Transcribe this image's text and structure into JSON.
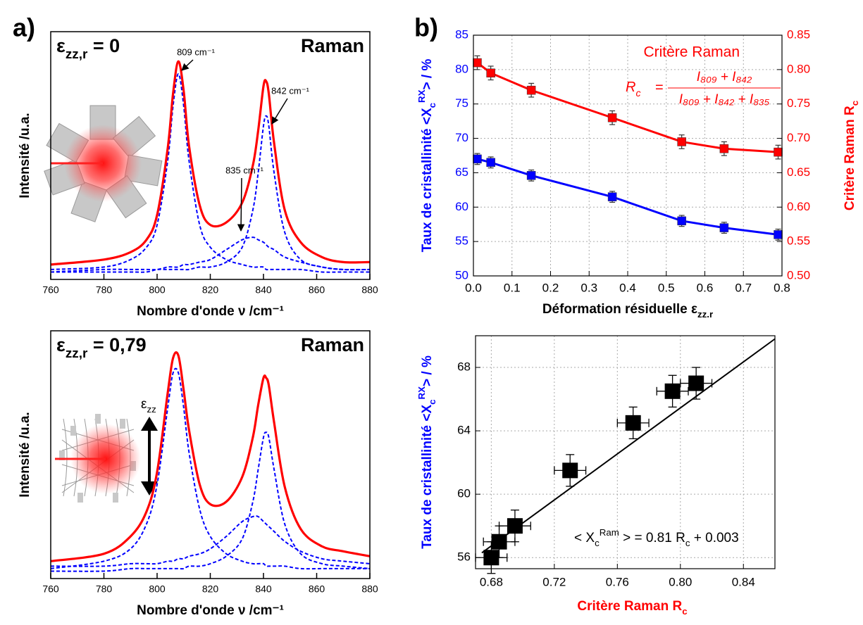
{
  "chart_data": [
    {
      "type": "spectrum",
      "panel_label": "a)",
      "corner_label": {
        "symbol": "ε",
        "sub": "zz,r",
        "end": " = 0"
      },
      "method": "Raman",
      "x_label": "Nombre d'onde ν /cm⁻¹",
      "y_label": "Intensité /u.a.",
      "x": [
        760,
        780,
        790,
        796,
        800,
        804,
        806,
        808,
        810,
        812,
        816,
        820,
        826,
        832,
        836,
        838,
        840,
        841,
        842,
        844,
        848,
        854,
        862,
        870,
        880
      ],
      "xlim": [
        760,
        880
      ],
      "xticks": [
        760,
        780,
        800,
        820,
        840,
        860,
        880
      ],
      "ylim": [
        0,
        1
      ],
      "series": [
        {
          "color": "#ff0000",
          "line_style": "solid",
          "values": [
            0.06,
            0.08,
            0.11,
            0.16,
            0.26,
            0.53,
            0.75,
            0.88,
            0.76,
            0.54,
            0.3,
            0.22,
            0.23,
            0.31,
            0.46,
            0.6,
            0.78,
            0.8,
            0.75,
            0.55,
            0.28,
            0.15,
            0.09,
            0.07,
            0.07
          ]
        },
        {
          "color": "#0000ff",
          "line_style": "dashed",
          "values": [
            0.04,
            0.05,
            0.08,
            0.13,
            0.22,
            0.48,
            0.7,
            0.83,
            0.7,
            0.48,
            0.22,
            0.13,
            0.08,
            0.06,
            0.05,
            0.05,
            0.05,
            0.04,
            0.04,
            0.04,
            0.04,
            0.04,
            0.03,
            0.03,
            0.03
          ]
        },
        {
          "color": "#0000ff",
          "line_style": "dashed",
          "values": [
            0.03,
            0.03,
            0.03,
            0.03,
            0.04,
            0.04,
            0.04,
            0.04,
            0.04,
            0.04,
            0.05,
            0.05,
            0.07,
            0.13,
            0.28,
            0.43,
            0.62,
            0.66,
            0.62,
            0.43,
            0.19,
            0.08,
            0.05,
            0.04,
            0.04
          ]
        },
        {
          "color": "#0000ff",
          "line_style": "dashed",
          "values": [
            0.03,
            0.04,
            0.04,
            0.04,
            0.04,
            0.05,
            0.05,
            0.05,
            0.06,
            0.06,
            0.07,
            0.08,
            0.12,
            0.16,
            0.17,
            0.16,
            0.15,
            0.14,
            0.13,
            0.12,
            0.09,
            0.07,
            0.05,
            0.04,
            0.04
          ]
        }
      ],
      "annotations": [
        "809 cm⁻¹",
        "842 cm⁻¹",
        "835 cm⁻¹"
      ]
    },
    {
      "type": "spectrum",
      "corner_label": {
        "symbol": "ε",
        "sub": "zz,r",
        "end": " = 0,79"
      },
      "method": "Raman",
      "x_label": "Nombre d'onde ν /cm⁻¹",
      "y_label": "Intensité /u.a.",
      "strain_label": {
        "symbol": "ε",
        "sub": "zz"
      },
      "x": [
        760,
        780,
        790,
        796,
        800,
        804,
        806,
        808,
        810,
        812,
        816,
        820,
        826,
        832,
        836,
        838,
        840,
        841,
        842,
        844,
        848,
        854,
        862,
        870,
        880
      ],
      "xlim": [
        760,
        880
      ],
      "xticks": [
        760,
        780,
        800,
        820,
        840,
        860,
        880
      ],
      "ylim": [
        0,
        1
      ],
      "series": [
        {
          "color": "#ff0000",
          "line_style": "solid",
          "values": [
            0.07,
            0.1,
            0.17,
            0.27,
            0.43,
            0.75,
            0.89,
            0.9,
            0.76,
            0.6,
            0.38,
            0.3,
            0.31,
            0.41,
            0.57,
            0.7,
            0.81,
            0.81,
            0.78,
            0.63,
            0.37,
            0.2,
            0.13,
            0.11,
            0.09
          ]
        },
        {
          "color": "#0000ff",
          "line_style": "dashed",
          "values": [
            0.04,
            0.07,
            0.12,
            0.22,
            0.38,
            0.69,
            0.83,
            0.83,
            0.69,
            0.51,
            0.28,
            0.17,
            0.1,
            0.07,
            0.06,
            0.06,
            0.06,
            0.05,
            0.05,
            0.05,
            0.05,
            0.04,
            0.04,
            0.04,
            0.04
          ]
        },
        {
          "color": "#0000ff",
          "line_style": "dashed",
          "values": [
            0.03,
            0.03,
            0.04,
            0.04,
            0.04,
            0.04,
            0.04,
            0.04,
            0.04,
            0.05,
            0.05,
            0.06,
            0.09,
            0.16,
            0.31,
            0.44,
            0.57,
            0.59,
            0.57,
            0.44,
            0.22,
            0.1,
            0.06,
            0.05,
            0.04
          ]
        },
        {
          "color": "#0000ff",
          "line_style": "dashed",
          "values": [
            0.05,
            0.05,
            0.06,
            0.06,
            0.06,
            0.07,
            0.07,
            0.08,
            0.08,
            0.09,
            0.1,
            0.12,
            0.17,
            0.23,
            0.25,
            0.25,
            0.23,
            0.22,
            0.21,
            0.19,
            0.15,
            0.11,
            0.08,
            0.07,
            0.06
          ]
        }
      ]
    },
    {
      "type": "dual_line",
      "panel_label": "b)",
      "x_label": {
        "text": "Déformation résiduelle ε",
        "sub": "zz.r"
      },
      "y_label": {
        "text": "Taux de cristallinité <X",
        "sub": "c",
        "sup": "RX",
        "end": "> / %"
      },
      "y2_label": {
        "text": "Critère Raman R",
        "sub": "c"
      },
      "formula": {
        "lhs": "R",
        "lhs_sub": "c",
        "eq": "=",
        "numerator": "I₈₀₉ + I₈₄₂",
        "denominator": "I₈₀₉ + I₈₄₂ + I₈₃₅"
      },
      "x": [
        0.01,
        0.045,
        0.15,
        0.36,
        0.54,
        0.65,
        0.79
      ],
      "xlim": [
        0,
        0.8
      ],
      "xticks": [
        {
          "value": 0,
          "label": "0.0"
        },
        0.1,
        0.2,
        0.3,
        0.4,
        0.5,
        0.6,
        0.7,
        0.8
      ],
      "ylim": [
        50,
        85
      ],
      "yticks": [
        50,
        55,
        60,
        65,
        70,
        75,
        80,
        85
      ],
      "y2lim": [
        0.5,
        0.85
      ],
      "y2ticks": [
        {
          "value": 0.5,
          "label": "0.50"
        },
        0.55,
        {
          "value": 0.6,
          "label": "0.60"
        },
        0.65,
        {
          "value": 0.7,
          "label": "0.70"
        },
        0.75,
        {
          "value": 0.8,
          "label": "0.80"
        },
        0.85
      ],
      "grid": true,
      "series": [
        {
          "color": "#0000ff",
          "axis": "y",
          "values": [
            67,
            66.5,
            64.6,
            61.5,
            58,
            57,
            56
          ],
          "errors": [
            0.8,
            0.8,
            0.8,
            0.8,
            0.8,
            0.8,
            0.8
          ]
        },
        {
          "name": "Critère Raman",
          "color": "#ff0000",
          "axis": "y2",
          "values": [
            0.81,
            0.795,
            0.77,
            0.73,
            0.695,
            0.685,
            0.68
          ],
          "errors": [
            0.01,
            0.01,
            0.01,
            0.01,
            0.01,
            0.01,
            0.01
          ]
        }
      ]
    },
    {
      "type": "scatter",
      "x_label": {
        "text": "Critère Raman R",
        "sub": "c"
      },
      "y_label": {
        "text": "Taux de cristallinité <X",
        "sub": "c",
        "sup": "RX",
        "end": "> / %"
      },
      "equation": [
        "< X",
        "c",
        "Ram",
        " > = 0.81 R",
        "c",
        " + 0.003"
      ],
      "x": [
        0.81,
        0.795,
        0.77,
        0.73,
        0.695,
        0.685,
        0.68
      ],
      "y": [
        67,
        66.5,
        64.5,
        61.5,
        58,
        57,
        56
      ],
      "xerr": [
        0.01,
        0.01,
        0.01,
        0.01,
        0.01,
        0.01,
        0.01
      ],
      "yerr": [
        1,
        1,
        1,
        1,
        1,
        1,
        1
      ],
      "color": "#000000",
      "fit": {
        "x": [
          0.674,
          0.86
        ],
        "y": [
          56.3,
          69.8
        ]
      },
      "xlim": [
        0.67,
        0.86
      ],
      "xticks": [
        0.68,
        0.72,
        0.76,
        {
          "value": 0.8,
          "label": "0.80"
        },
        0.84
      ],
      "ylim": [
        55.3,
        70
      ],
      "yticks": [
        56,
        60,
        64,
        68
      ],
      "grid": true
    }
  ]
}
